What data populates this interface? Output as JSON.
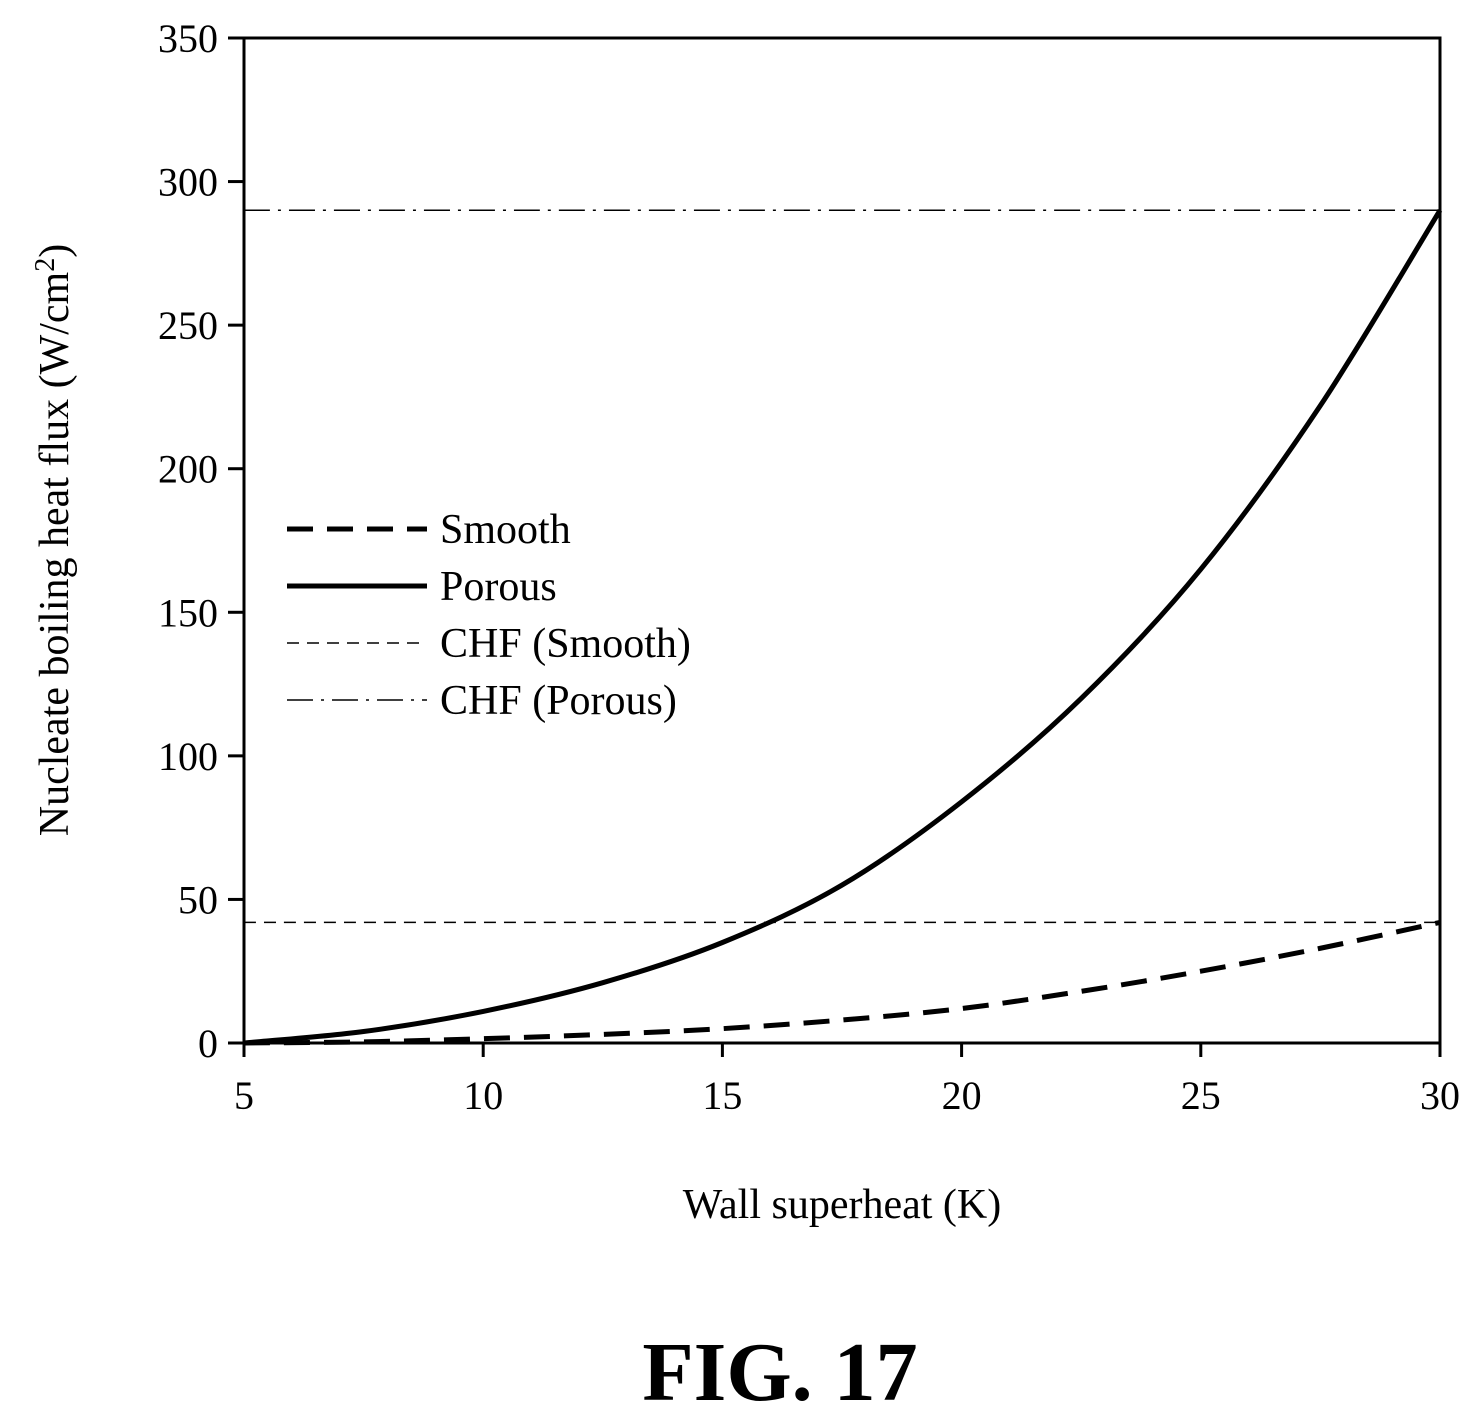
{
  "figure_label": "FIG. 17",
  "chart_data": {
    "type": "line",
    "xlabel": "Wall superheat (K)",
    "ylabel": "Nucleate boiling heat flux (W/cm",
    "ylabel_sup": "2",
    "ylabel_end": ")",
    "xlim": [
      5,
      30
    ],
    "ylim": [
      0,
      350
    ],
    "xticks": [
      5,
      10,
      15,
      20,
      25,
      30
    ],
    "yticks": [
      0,
      50,
      100,
      150,
      200,
      250,
      300,
      350
    ],
    "grid": false,
    "legend_position": "center-left",
    "series": [
      {
        "name": "Smooth",
        "style": "dashed",
        "color": "#000000",
        "x": [
          5,
          7.5,
          10,
          12.5,
          15,
          17.5,
          20,
          22.5,
          25,
          27.5,
          30
        ],
        "y": [
          0,
          0.4,
          1.5,
          3,
          5,
          8,
          12,
          18,
          25,
          33,
          42
        ]
      },
      {
        "name": "Porous",
        "style": "solid",
        "color": "#000000",
        "x": [
          5,
          7.5,
          10,
          12.5,
          15,
          17.5,
          20,
          22.5,
          25,
          27.5,
          30
        ],
        "y": [
          0,
          4,
          11,
          21,
          35,
          55,
          84,
          120,
          165,
          222,
          290
        ]
      },
      {
        "name": "CHF (Smooth)",
        "style": "thin-dashed",
        "color": "#000000",
        "x": [
          5,
          30
        ],
        "y": [
          42,
          42
        ]
      },
      {
        "name": "CHF (Porous)",
        "style": "dash-dot",
        "color": "#000000",
        "x": [
          5,
          30
        ],
        "y": [
          290,
          290
        ]
      }
    ]
  }
}
